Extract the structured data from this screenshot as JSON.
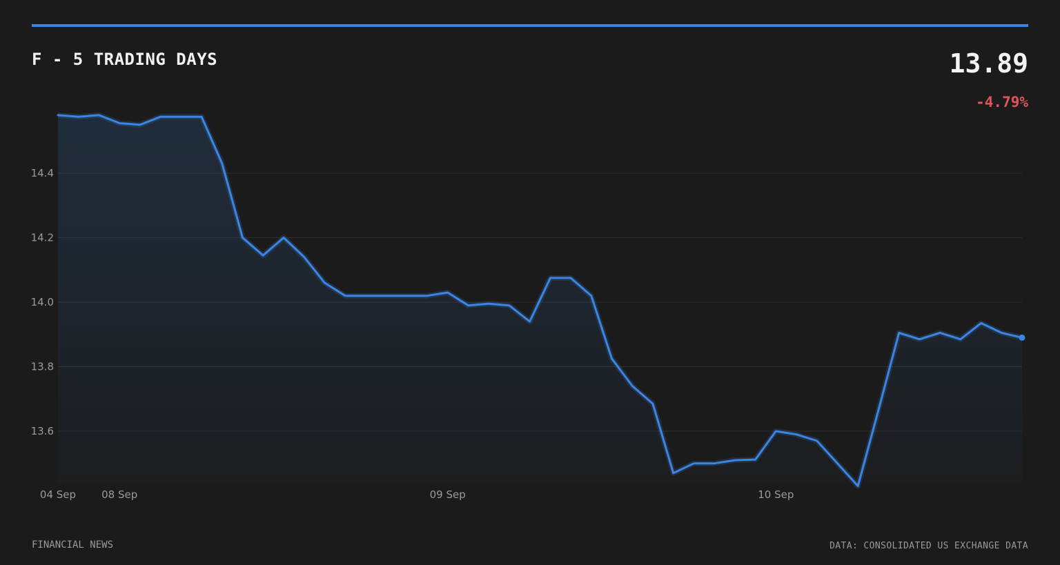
{
  "header": {
    "title": "F - 5 TRADING DAYS",
    "price": "13.89",
    "change": "-4.79%"
  },
  "footer": {
    "source_left": "FINANCIAL NEWS",
    "source_right": "DATA: CONSOLIDATED US EXCHANGE DATA"
  },
  "colors": {
    "accent": "#3b86e3",
    "line": "#3b86e3",
    "negative": "#e0555a",
    "grid": "#2f2f2f"
  },
  "chart_data": {
    "type": "area",
    "title": "F - 5 TRADING DAYS",
    "xlabel": "",
    "ylabel": "",
    "ylim": [
      13.45,
      14.6
    ],
    "grid": true,
    "y_ticks": [
      14.4,
      14.2,
      14.0,
      13.8,
      13.6
    ],
    "y_tick_labels": [
      "14.4",
      "14.2",
      "14.0",
      "13.8",
      "13.6"
    ],
    "x_ticks": [
      {
        "index": 0,
        "label": "04 Sep"
      },
      {
        "index": 3,
        "label": "08 Sep"
      },
      {
        "index": 19,
        "label": "09 Sep"
      },
      {
        "index": 35,
        "label": "10 Sep"
      }
    ],
    "series": [
      {
        "values": [
          14.58,
          14.575,
          14.58,
          14.555,
          14.55,
          14.575,
          14.575,
          14.575,
          14.43,
          14.2,
          14.145,
          14.2,
          14.14,
          14.06,
          14.02,
          14.02,
          14.02,
          14.02,
          14.02,
          14.03,
          13.99,
          13.995,
          13.99,
          13.94,
          14.075,
          14.075,
          14.02,
          13.825,
          13.74,
          13.685,
          13.47,
          13.5,
          13.5,
          13.51,
          13.512,
          13.6,
          13.59,
          13.57,
          13.5,
          13.43,
          13.665,
          13.905,
          13.885,
          13.905,
          13.885,
          13.935,
          13.905,
          13.89
        ]
      }
    ]
  }
}
